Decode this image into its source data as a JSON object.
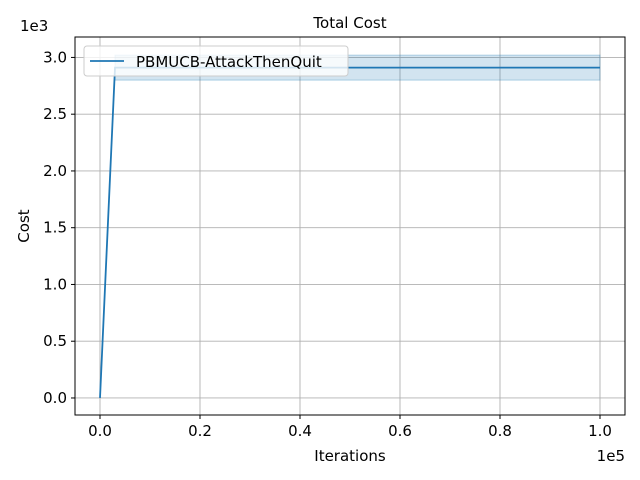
{
  "chart_data": {
    "type": "line",
    "title": "Total Cost",
    "xlabel": "Iterations",
    "ylabel": "Cost",
    "x_offset_label": "1e5",
    "y_offset_label": "1e3",
    "xlim": [
      -5000,
      105000
    ],
    "ylim": [
      -150,
      3180
    ],
    "x_ticks": [
      0,
      20000,
      40000,
      60000,
      80000,
      100000
    ],
    "x_tick_labels": [
      "0.0",
      "0.2",
      "0.4",
      "0.6",
      "0.8",
      "1.0"
    ],
    "y_ticks": [
      0,
      500,
      1000,
      1500,
      2000,
      2500,
      3000
    ],
    "y_tick_labels": [
      "0.0",
      "0.5",
      "1.0",
      "1.5",
      "2.0",
      "2.5",
      "3.0"
    ],
    "grid": true,
    "legend_position": "upper-left",
    "series": [
      {
        "name": "PBMUCB-AttackThenQuit",
        "color": "#1f77b4",
        "x": [
          0,
          3000,
          100000
        ],
        "y": [
          0,
          2910,
          2910
        ],
        "band": {
          "x": [
            3000,
            100000
          ],
          "lower": [
            2800,
            2800
          ],
          "upper": [
            3020,
            3020
          ],
          "color": "#1f77b4",
          "opacity": 0.2
        }
      }
    ]
  }
}
